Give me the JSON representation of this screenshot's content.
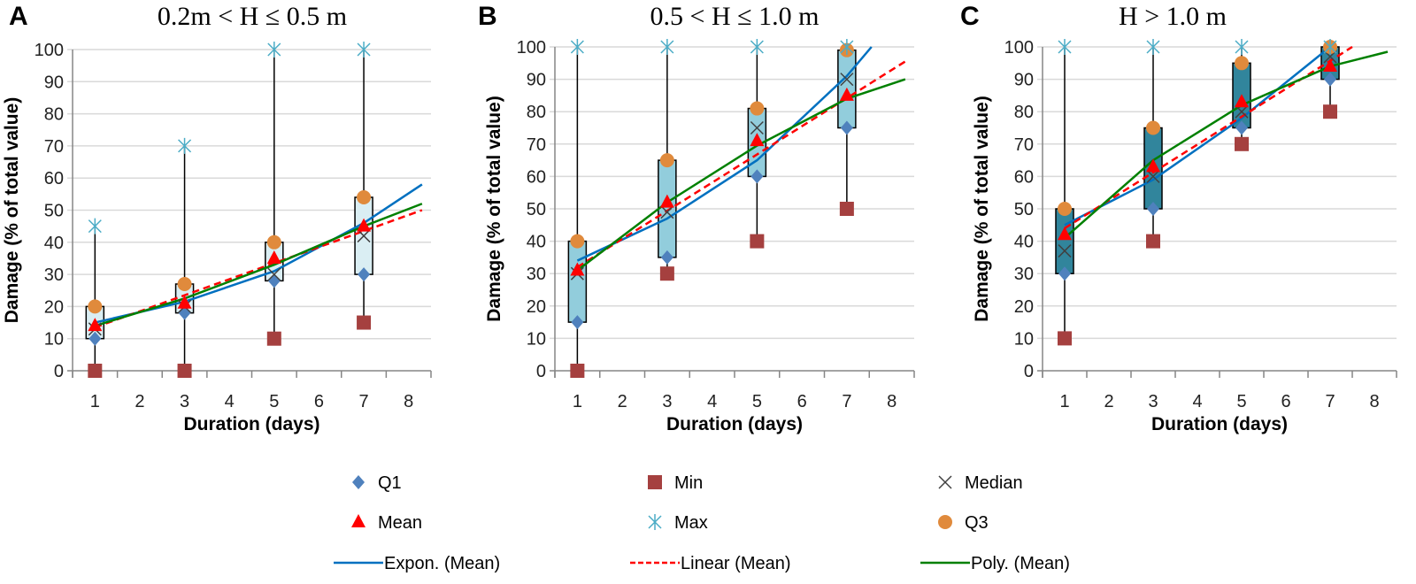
{
  "legend": [
    {
      "key": "q1",
      "label": "Q1",
      "color": "#4f81bd",
      "marker": "diamond"
    },
    {
      "key": "min",
      "label": "Min",
      "color": "#a5403f",
      "marker": "square"
    },
    {
      "key": "median",
      "label": "Median",
      "color": "#404040",
      "marker": "x"
    },
    {
      "key": "mean",
      "label": "Mean",
      "color": "#ff0000",
      "marker": "triangle"
    },
    {
      "key": "max",
      "label": "Max",
      "color": "#4bacc6",
      "marker": "star"
    },
    {
      "key": "q3",
      "label": "Q3",
      "color": "#e08a3c",
      "marker": "circle"
    },
    {
      "key": "expon",
      "label": "Expon. (Mean)",
      "color": "#0070c0",
      "marker": "line"
    },
    {
      "key": "linear",
      "label": "Linear (Mean)",
      "color": "#ff0000",
      "marker": "dashed"
    },
    {
      "key": "poly",
      "label": "Poly. (Mean)",
      "color": "#008000",
      "marker": "line"
    }
  ],
  "chart_data": [
    {
      "type": "box-scatter",
      "panel": "A",
      "title": "0.2m < H ≤ 0.5 m",
      "xlabel": "Duration (days)",
      "ylabel": "Damage (% of total value)",
      "ylim": [
        0,
        100
      ],
      "yticks": [
        0,
        10,
        20,
        30,
        40,
        50,
        60,
        70,
        80,
        90,
        100
      ],
      "xticks": [
        1,
        2,
        3,
        4,
        5,
        6,
        7,
        8
      ],
      "grid": true,
      "box_color": "#daeef3",
      "x": [
        1,
        3,
        5,
        7
      ],
      "min": [
        0,
        0,
        10,
        15
      ],
      "q1": [
        10,
        18,
        28,
        30
      ],
      "median": [
        13,
        20,
        30,
        42
      ],
      "mean": [
        14,
        21,
        35,
        45
      ],
      "q3": [
        20,
        27,
        40,
        54
      ],
      "max": [
        45,
        70,
        100,
        100
      ],
      "trends": {
        "expon": [
          [
            1,
            15
          ],
          [
            3,
            21.5
          ],
          [
            5,
            31
          ],
          [
            7,
            46
          ],
          [
            8.3,
            58
          ]
        ],
        "linear": [
          [
            1,
            13.5
          ],
          [
            8.3,
            50
          ]
        ],
        "poly": [
          [
            1,
            14
          ],
          [
            3,
            22.5
          ],
          [
            5,
            33
          ],
          [
            7,
            45
          ],
          [
            8.3,
            52
          ]
        ]
      }
    },
    {
      "type": "box-scatter",
      "panel": "B",
      "title": "0.5 < H ≤ 1.0 m",
      "xlabel": "Duration (days)",
      "ylabel": "Damage (% of total value)",
      "ylim": [
        0,
        100
      ],
      "yticks": [
        0,
        10,
        20,
        30,
        40,
        50,
        60,
        70,
        80,
        90,
        100
      ],
      "xticks": [
        1,
        2,
        3,
        4,
        5,
        6,
        7,
        8
      ],
      "grid": true,
      "box_color": "#92cddc",
      "x": [
        1,
        3,
        5,
        7
      ],
      "min": [
        0,
        30,
        40,
        50
      ],
      "q1": [
        15,
        35,
        60,
        75
      ],
      "median": [
        30,
        49,
        75,
        90
      ],
      "mean": [
        31,
        52,
        71,
        85
      ],
      "q3": [
        40,
        65,
        81,
        99
      ],
      "max": [
        100,
        100,
        100,
        100
      ],
      "trends": {
        "expon": [
          [
            1,
            34
          ],
          [
            3,
            47
          ],
          [
            5,
            65
          ],
          [
            7,
            91
          ],
          [
            7.55,
            100
          ]
        ],
        "linear": [
          [
            1,
            32
          ],
          [
            8.3,
            95.5
          ]
        ],
        "poly": [
          [
            1,
            31
          ],
          [
            3,
            52
          ],
          [
            5,
            69.5
          ],
          [
            7,
            84
          ],
          [
            8.3,
            90
          ]
        ]
      }
    },
    {
      "type": "box-scatter",
      "panel": "C",
      "title": "H > 1.0 m",
      "xlabel": "Duration (days)",
      "ylabel": "Damage (% of total value)",
      "ylim": [
        0,
        100
      ],
      "yticks": [
        0,
        10,
        20,
        30,
        40,
        50,
        60,
        70,
        80,
        90,
        100
      ],
      "xticks": [
        1,
        2,
        3,
        4,
        5,
        6,
        7,
        8
      ],
      "grid": true,
      "box_color": "#31859c",
      "x": [
        1,
        3,
        5,
        7
      ],
      "min": [
        10,
        40,
        70,
        80
      ],
      "q1": [
        30,
        50,
        75,
        90
      ],
      "median": [
        37,
        60,
        80,
        97
      ],
      "mean": [
        42,
        63,
        83,
        94
      ],
      "q3": [
        50,
        75,
        95,
        100
      ],
      "max": [
        100,
        100,
        100,
        100
      ],
      "trends": {
        "expon": [
          [
            1,
            45
          ],
          [
            3,
            59
          ],
          [
            5,
            78
          ],
          [
            7,
            100
          ]
        ],
        "linear": [
          [
            1,
            44
          ],
          [
            7.5,
            100
          ]
        ],
        "poly": [
          [
            1,
            41
          ],
          [
            3,
            65
          ],
          [
            5,
            82
          ],
          [
            7,
            94
          ],
          [
            8.3,
            98.5
          ]
        ]
      }
    }
  ]
}
